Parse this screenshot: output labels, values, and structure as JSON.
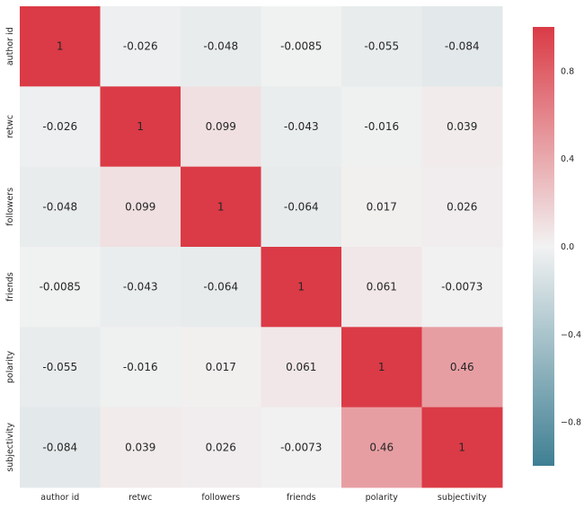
{
  "chart_data": {
    "type": "heatmap",
    "title": "",
    "xlabel": "",
    "ylabel": "",
    "x_categories": [
      "author id",
      "retwc",
      "followers",
      "friends",
      "polarity",
      "subjectivity"
    ],
    "y_categories": [
      "author id",
      "retwc",
      "followers",
      "friends",
      "polarity",
      "subjectivity"
    ],
    "values": [
      [
        1,
        -0.026,
        -0.048,
        -0.0085,
        -0.055,
        -0.084
      ],
      [
        -0.026,
        1,
        0.099,
        -0.043,
        -0.016,
        0.039
      ],
      [
        -0.048,
        0.099,
        1,
        -0.064,
        0.017,
        0.026
      ],
      [
        -0.0085,
        -0.043,
        -0.064,
        1,
        0.061,
        -0.0073
      ],
      [
        -0.055,
        -0.016,
        0.017,
        0.061,
        1,
        0.46
      ],
      [
        -0.084,
        0.039,
        0.026,
        -0.0073,
        0.46,
        1
      ]
    ],
    "value_labels": [
      [
        "1",
        "-0.026",
        "-0.048",
        "-0.0085",
        "-0.055",
        "-0.084"
      ],
      [
        "-0.026",
        "1",
        "0.099",
        "-0.043",
        "-0.016",
        "0.039"
      ],
      [
        "-0.048",
        "0.099",
        "1",
        "-0.064",
        "0.017",
        "0.026"
      ],
      [
        "-0.0085",
        "-0.043",
        "-0.064",
        "1",
        "0.061",
        "-0.0073"
      ],
      [
        "-0.055",
        "-0.016",
        "0.017",
        "0.061",
        "1",
        "0.46"
      ],
      [
        "-0.084",
        "0.039",
        "0.026",
        "-0.0073",
        "0.46",
        "1"
      ]
    ],
    "vmin": -1,
    "vmax": 1,
    "colormap": {
      "negative": "#3f7f93",
      "center": "#f2f2f2",
      "positive": "#da3b46"
    },
    "colorbar": {
      "ticks": [
        -0.8,
        -0.4,
        0.0,
        0.4,
        0.8
      ],
      "tick_labels": [
        "−0.8",
        "−0.4",
        "0.0",
        "0.4",
        "0.8"
      ],
      "placement": "right"
    },
    "annotation_text_color": "#262626",
    "grid": false
  }
}
